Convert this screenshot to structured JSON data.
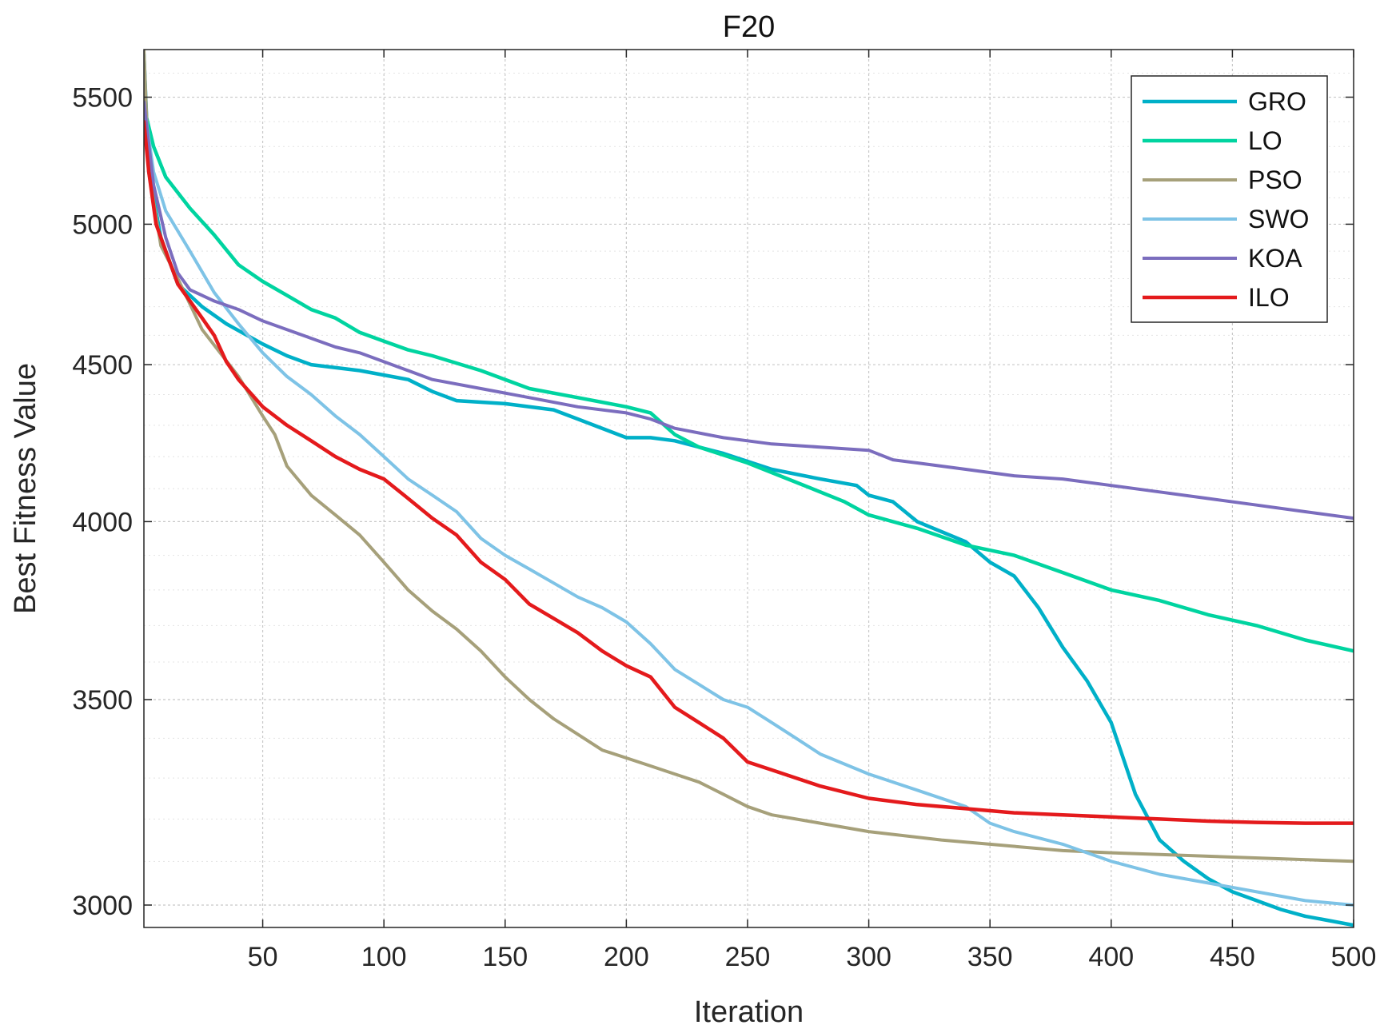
{
  "chart_data": {
    "type": "line",
    "title": "F20",
    "xlabel": "Iteration",
    "ylabel": "Best Fitness Value",
    "xlim": [
      1,
      500
    ],
    "ylim": [
      2950,
      5700
    ],
    "y_scale": "log",
    "xticks": [
      50,
      100,
      150,
      200,
      250,
      300,
      350,
      400,
      450,
      500
    ],
    "yticks": [
      3000,
      3500,
      4000,
      4500,
      5000,
      5500
    ],
    "grid": true,
    "minor_grid": true,
    "legend_position": "top-right",
    "series": [
      {
        "name": "GRO",
        "color": "#00B0C8",
        "width": 4.5,
        "points": [
          [
            1,
            5680
          ],
          [
            3,
            5200
          ],
          [
            8,
            4950
          ],
          [
            15,
            4780
          ],
          [
            25,
            4700
          ],
          [
            35,
            4640
          ],
          [
            50,
            4570
          ],
          [
            60,
            4530
          ],
          [
            70,
            4500
          ],
          [
            90,
            4480
          ],
          [
            110,
            4450
          ],
          [
            120,
            4410
          ],
          [
            130,
            4380
          ],
          [
            150,
            4370
          ],
          [
            170,
            4350
          ],
          [
            180,
            4320
          ],
          [
            200,
            4260
          ],
          [
            210,
            4260
          ],
          [
            220,
            4250
          ],
          [
            240,
            4210
          ],
          [
            260,
            4160
          ],
          [
            280,
            4130
          ],
          [
            295,
            4110
          ],
          [
            300,
            4080
          ],
          [
            310,
            4060
          ],
          [
            320,
            4000
          ],
          [
            330,
            3970
          ],
          [
            340,
            3940
          ],
          [
            350,
            3880
          ],
          [
            360,
            3840
          ],
          [
            370,
            3750
          ],
          [
            380,
            3640
          ],
          [
            390,
            3550
          ],
          [
            400,
            3440
          ],
          [
            410,
            3260
          ],
          [
            420,
            3150
          ],
          [
            430,
            3100
          ],
          [
            440,
            3060
          ],
          [
            450,
            3030
          ],
          [
            460,
            3010
          ],
          [
            470,
            2990
          ],
          [
            480,
            2975
          ],
          [
            490,
            2965
          ],
          [
            500,
            2955
          ]
        ]
      },
      {
        "name": "LO",
        "color": "#00D4A0",
        "width": 4.5,
        "points": [
          [
            1,
            5460
          ],
          [
            5,
            5300
          ],
          [
            10,
            5180
          ],
          [
            20,
            5060
          ],
          [
            30,
            4960
          ],
          [
            40,
            4850
          ],
          [
            50,
            4790
          ],
          [
            60,
            4740
          ],
          [
            70,
            4690
          ],
          [
            80,
            4660
          ],
          [
            90,
            4610
          ],
          [
            100,
            4580
          ],
          [
            110,
            4550
          ],
          [
            120,
            4530
          ],
          [
            140,
            4480
          ],
          [
            160,
            4420
          ],
          [
            180,
            4390
          ],
          [
            200,
            4360
          ],
          [
            210,
            4340
          ],
          [
            220,
            4270
          ],
          [
            230,
            4230
          ],
          [
            250,
            4180
          ],
          [
            270,
            4120
          ],
          [
            290,
            4060
          ],
          [
            300,
            4020
          ],
          [
            320,
            3980
          ],
          [
            340,
            3930
          ],
          [
            360,
            3900
          ],
          [
            380,
            3850
          ],
          [
            400,
            3800
          ],
          [
            420,
            3770
          ],
          [
            440,
            3730
          ],
          [
            460,
            3700
          ],
          [
            480,
            3660
          ],
          [
            500,
            3630
          ]
        ]
      },
      {
        "name": "PSO",
        "color": "#A6A07A",
        "width": 4,
        "points": [
          [
            1,
            5700
          ],
          [
            3,
            5200
          ],
          [
            8,
            4920
          ],
          [
            15,
            4800
          ],
          [
            25,
            4620
          ],
          [
            40,
            4460
          ],
          [
            50,
            4330
          ],
          [
            55,
            4270
          ],
          [
            60,
            4170
          ],
          [
            70,
            4080
          ],
          [
            80,
            4020
          ],
          [
            90,
            3960
          ],
          [
            100,
            3880
          ],
          [
            110,
            3800
          ],
          [
            120,
            3740
          ],
          [
            130,
            3690
          ],
          [
            140,
            3630
          ],
          [
            150,
            3560
          ],
          [
            160,
            3500
          ],
          [
            170,
            3450
          ],
          [
            180,
            3410
          ],
          [
            190,
            3370
          ],
          [
            200,
            3350
          ],
          [
            210,
            3330
          ],
          [
            220,
            3310
          ],
          [
            230,
            3290
          ],
          [
            240,
            3260
          ],
          [
            250,
            3230
          ],
          [
            260,
            3210
          ],
          [
            280,
            3190
          ],
          [
            300,
            3170
          ],
          [
            330,
            3150
          ],
          [
            350,
            3140
          ],
          [
            380,
            3125
          ],
          [
            400,
            3120
          ],
          [
            450,
            3110
          ],
          [
            500,
            3100
          ]
        ]
      },
      {
        "name": "SWO",
        "color": "#7EC3E6",
        "width": 4,
        "points": [
          [
            1,
            5470
          ],
          [
            5,
            5200
          ],
          [
            10,
            5050
          ],
          [
            20,
            4900
          ],
          [
            30,
            4750
          ],
          [
            40,
            4640
          ],
          [
            50,
            4540
          ],
          [
            60,
            4460
          ],
          [
            70,
            4400
          ],
          [
            80,
            4330
          ],
          [
            90,
            4270
          ],
          [
            100,
            4200
          ],
          [
            110,
            4130
          ],
          [
            120,
            4080
          ],
          [
            130,
            4030
          ],
          [
            140,
            3950
          ],
          [
            150,
            3900
          ],
          [
            160,
            3860
          ],
          [
            170,
            3820
          ],
          [
            180,
            3780
          ],
          [
            190,
            3750
          ],
          [
            200,
            3710
          ],
          [
            210,
            3650
          ],
          [
            220,
            3580
          ],
          [
            230,
            3540
          ],
          [
            240,
            3500
          ],
          [
            250,
            3480
          ],
          [
            260,
            3440
          ],
          [
            270,
            3400
          ],
          [
            280,
            3360
          ],
          [
            300,
            3310
          ],
          [
            320,
            3270
          ],
          [
            340,
            3230
          ],
          [
            350,
            3190
          ],
          [
            360,
            3170
          ],
          [
            380,
            3140
          ],
          [
            400,
            3100
          ],
          [
            420,
            3070
          ],
          [
            440,
            3050
          ],
          [
            460,
            3030
          ],
          [
            480,
            3010
          ],
          [
            500,
            3000
          ]
        ]
      },
      {
        "name": "KOA",
        "color": "#7B6DBE",
        "width": 4,
        "points": [
          [
            1,
            5480
          ],
          [
            5,
            5150
          ],
          [
            10,
            4950
          ],
          [
            15,
            4820
          ],
          [
            20,
            4760
          ],
          [
            30,
            4720
          ],
          [
            40,
            4690
          ],
          [
            50,
            4650
          ],
          [
            60,
            4620
          ],
          [
            70,
            4590
          ],
          [
            80,
            4560
          ],
          [
            90,
            4540
          ],
          [
            100,
            4510
          ],
          [
            110,
            4480
          ],
          [
            120,
            4450
          ],
          [
            140,
            4420
          ],
          [
            160,
            4390
          ],
          [
            180,
            4360
          ],
          [
            200,
            4340
          ],
          [
            210,
            4320
          ],
          [
            220,
            4290
          ],
          [
            240,
            4260
          ],
          [
            250,
            4250
          ],
          [
            260,
            4240
          ],
          [
            280,
            4230
          ],
          [
            300,
            4220
          ],
          [
            310,
            4190
          ],
          [
            320,
            4180
          ],
          [
            340,
            4160
          ],
          [
            360,
            4140
          ],
          [
            380,
            4130
          ],
          [
            400,
            4110
          ],
          [
            420,
            4090
          ],
          [
            440,
            4070
          ],
          [
            460,
            4050
          ],
          [
            480,
            4030
          ],
          [
            500,
            4010
          ]
        ]
      },
      {
        "name": "ILO",
        "color": "#E41A1C",
        "width": 4.5,
        "points": [
          [
            1,
            5400
          ],
          [
            3,
            5200
          ],
          [
            6,
            5000
          ],
          [
            10,
            4900
          ],
          [
            15,
            4780
          ],
          [
            20,
            4720
          ],
          [
            25,
            4660
          ],
          [
            30,
            4600
          ],
          [
            35,
            4510
          ],
          [
            40,
            4450
          ],
          [
            50,
            4360
          ],
          [
            60,
            4300
          ],
          [
            70,
            4250
          ],
          [
            80,
            4200
          ],
          [
            90,
            4160
          ],
          [
            100,
            4130
          ],
          [
            110,
            4070
          ],
          [
            120,
            4010
          ],
          [
            130,
            3960
          ],
          [
            140,
            3880
          ],
          [
            150,
            3830
          ],
          [
            160,
            3760
          ],
          [
            170,
            3720
          ],
          [
            180,
            3680
          ],
          [
            190,
            3630
          ],
          [
            200,
            3590
          ],
          [
            210,
            3560
          ],
          [
            220,
            3480
          ],
          [
            230,
            3440
          ],
          [
            240,
            3400
          ],
          [
            250,
            3340
          ],
          [
            260,
            3320
          ],
          [
            280,
            3280
          ],
          [
            300,
            3250
          ],
          [
            320,
            3235
          ],
          [
            340,
            3225
          ],
          [
            360,
            3215
          ],
          [
            380,
            3210
          ],
          [
            400,
            3205
          ],
          [
            420,
            3200
          ],
          [
            440,
            3195
          ],
          [
            460,
            3192
          ],
          [
            480,
            3190
          ],
          [
            500,
            3190
          ]
        ]
      }
    ]
  }
}
